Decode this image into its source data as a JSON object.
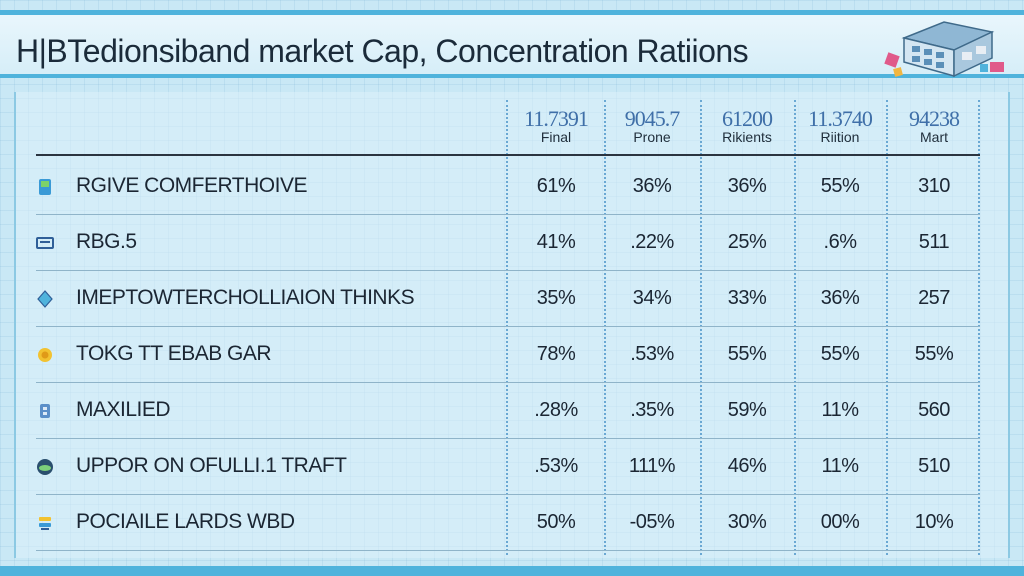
{
  "title": "H|BTedionsiband market Cap, Concentration Ratiions",
  "chart_data": {
    "type": "table",
    "columns": [
      {
        "value": "11.7391",
        "label": "Final"
      },
      {
        "value": "9045.7",
        "label": "Prone"
      },
      {
        "value": "61200",
        "label": "Rikients"
      },
      {
        "value": "11.3740",
        "label": "Riition"
      },
      {
        "value": "94238",
        "label": "Mart"
      }
    ],
    "rows": [
      {
        "label": "RGIVE COMFERTHOIVE",
        "icon": "battery-icon",
        "values": [
          "61%",
          "36%",
          "36%",
          "55%",
          "310"
        ]
      },
      {
        "label": "RBG.5",
        "icon": "monitor-icon",
        "values": [
          "41%",
          ".22%",
          "25%",
          ".6%",
          "511"
        ]
      },
      {
        "label": "IMEPTOWTERCHOLLIAION THINKS",
        "icon": "diamond-icon",
        "values": [
          "35%",
          "34%",
          "33%",
          "36%",
          "257"
        ]
      },
      {
        "label": "TOKG TT EBAB GAR",
        "icon": "coin-icon",
        "values": [
          "78%",
          ".53%",
          "55%",
          "55%",
          "55%"
        ]
      },
      {
        "label": "MAXILIED",
        "icon": "building-icon",
        "values": [
          ".28%",
          ".35%",
          "59%",
          "11%",
          "560"
        ]
      },
      {
        "label": "UPPOR ON OFULLI.1 TRAFT",
        "icon": "globe-icon",
        "values": [
          ".53%",
          "111%",
          "46%",
          "11%",
          "510"
        ]
      },
      {
        "label": "POCIAILE LARDS WBD",
        "icon": "stack-icon",
        "values": [
          "50%",
          "-05%",
          "30%",
          "00%",
          "10%"
        ]
      }
    ]
  },
  "colors": {
    "accent": "#4fb3dc",
    "header_number": "#3f6fa8",
    "text": "#1b2633",
    "background": "#c9e8f5"
  }
}
